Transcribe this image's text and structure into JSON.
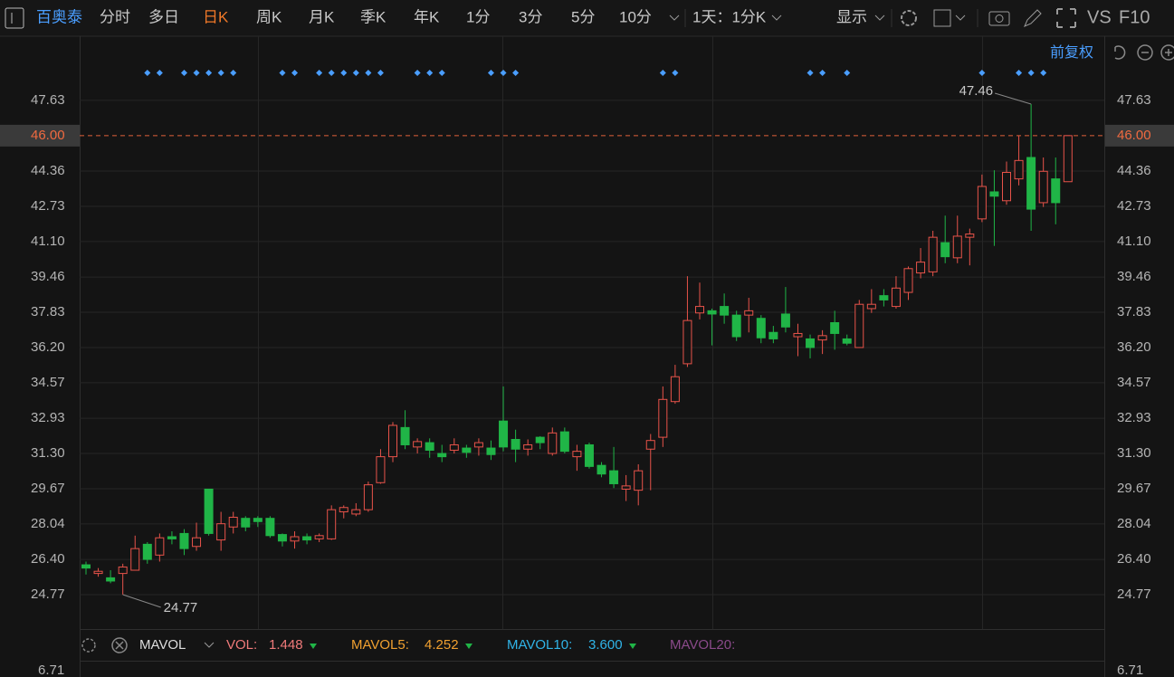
{
  "toolbar": {
    "stock": "百奥泰",
    "periods": [
      "分时",
      "多日",
      "日K",
      "周K",
      "月K",
      "季K",
      "年K",
      "1分",
      "3分",
      "5分",
      "10分"
    ],
    "interval": "1天：1分K",
    "display": "显示",
    "vs": "VS",
    "f10": "F10"
  },
  "adjust": "前复权",
  "indicator": {
    "name": "MAVOL",
    "vol_label": "VOL:",
    "vol": "1.448",
    "ma5_label": "MAVOL5:",
    "ma5": "4.252",
    "ma10_label": "MAVOL10:",
    "ma10": "3.600",
    "ma20_label": "MAVOL20:"
  },
  "volume_axis": {
    "yticks": [
      6.71
    ]
  },
  "chart_data": {
    "type": "candlestick",
    "up_color": "#e8534a",
    "down_color": "#20b547",
    "ylim": [
      23.18,
      50.39
    ],
    "yticks": [
      47.63,
      {
        "value": 46,
        "label": "46.00"
      },
      44.36,
      42.73,
      {
        "value": 41.1,
        "label": "41.10"
      },
      39.46,
      37.83,
      {
        "value": 36.2,
        "label": "36.20"
      },
      34.57,
      32.93,
      {
        "value": 31.3,
        "label": "31.30"
      },
      29.67,
      28.04,
      {
        "value": 26.4,
        "label": "26.40"
      },
      24.77
    ],
    "grid": true,
    "open": [
      26.15,
      25.75,
      25.55,
      25.75,
      25.9,
      27.1,
      26.6,
      27.45,
      27.6,
      27.0,
      29.65,
      27.3,
      27.9,
      28.3,
      28.3,
      28.3,
      27.55,
      27.25,
      27.45,
      27.35,
      27.35,
      28.6,
      28.5,
      28.7,
      29.95,
      31.15,
      32.5,
      31.6,
      31.8,
      31.3,
      31.45,
      31.55,
      31.6,
      31.55,
      32.8,
      31.95,
      31.5,
      32.05,
      31.3,
      32.3,
      31.15,
      31.7,
      30.75,
      30.5,
      29.65,
      29.6,
      31.5,
      32.05,
      33.7,
      35.45,
      37.8,
      37.9,
      38.1,
      37.7,
      37.7,
      37.55,
      36.9,
      37.75,
      36.7,
      36.6,
      36.55,
      37.35,
      36.6,
      36.2,
      38.0,
      38.6,
      38.1,
      38.75,
      39.65,
      39.7,
      41.05,
      40.35,
      41.3,
      42.15,
      43.4,
      42.99,
      44.0,
      44.99,
      42.9,
      44.0,
      43.87
    ],
    "high": [
      26.3,
      26.0,
      25.9,
      26.2,
      27.5,
      27.2,
      27.6,
      27.7,
      27.8,
      28.1,
      29.65,
      28.6,
      28.6,
      28.4,
      28.4,
      28.4,
      27.6,
      27.7,
      27.6,
      27.6,
      28.9,
      28.9,
      29.0,
      30.0,
      31.5,
      32.75,
      33.3,
      32.0,
      32.0,
      31.7,
      32.0,
      31.7,
      32.0,
      31.9,
      34.4,
      32.4,
      31.95,
      32.1,
      32.5,
      32.5,
      31.7,
      31.8,
      30.9,
      31.6,
      30.3,
      30.8,
      32.2,
      34.4,
      35.4,
      39.5,
      39.2,
      38.0,
      38.7,
      37.9,
      38.5,
      37.7,
      37.2,
      39.0,
      37.3,
      36.8,
      37.0,
      37.9,
      36.8,
      38.4,
      38.9,
      38.9,
      39.5,
      39.95,
      40.8,
      41.6,
      42.3,
      42.3,
      41.7,
      44.2,
      44.4,
      44.8,
      46.0,
      47.46,
      44.99,
      44.99,
      46.0
    ],
    "low": [
      25.7,
      25.6,
      25.3,
      24.77,
      25.9,
      26.2,
      26.3,
      27.1,
      26.6,
      26.8,
      27.5,
      26.8,
      27.6,
      27.7,
      27.9,
      27.4,
      27.0,
      26.9,
      27.1,
      27.2,
      27.3,
      28.3,
      28.4,
      28.6,
      29.9,
      30.9,
      31.5,
      31.3,
      31.1,
      30.9,
      31.3,
      31.1,
      31.2,
      31.0,
      31.4,
      30.9,
      31.2,
      31.5,
      31.2,
      31.3,
      30.5,
      30.6,
      30.2,
      29.7,
      29.1,
      28.9,
      29.6,
      31.6,
      33.6,
      35.3,
      37.5,
      36.3,
      37.3,
      36.5,
      36.9,
      36.4,
      36.4,
      36.9,
      35.8,
      35.7,
      35.9,
      36.1,
      36.3,
      36.2,
      37.8,
      38.1,
      38.0,
      38.4,
      39.4,
      39.5,
      40.1,
      40.1,
      40.0,
      42.0,
      40.9,
      42.8,
      43.7,
      41.6,
      42.7,
      41.9,
      43.87
    ],
    "close": [
      26.0,
      25.85,
      25.4,
      26.05,
      26.9,
      26.4,
      27.4,
      27.35,
      26.9,
      27.4,
      27.6,
      28.05,
      28.35,
      27.9,
      28.15,
      27.5,
      27.25,
      27.45,
      27.3,
      27.5,
      28.7,
      28.8,
      28.7,
      29.85,
      31.15,
      32.6,
      31.7,
      31.85,
      31.45,
      31.15,
      31.7,
      31.35,
      31.8,
      31.25,
      31.6,
      31.5,
      31.7,
      31.8,
      32.25,
      31.4,
      31.4,
      30.7,
      30.35,
      29.9,
      29.8,
      30.5,
      31.9,
      33.8,
      34.85,
      37.45,
      38.1,
      37.75,
      37.7,
      36.7,
      37.9,
      36.65,
      36.6,
      37.15,
      36.85,
      36.2,
      36.75,
      36.85,
      36.4,
      38.2,
      38.2,
      38.4,
      38.95,
      39.85,
      40.15,
      41.3,
      40.4,
      41.35,
      41.45,
      43.65,
      43.2,
      44.3,
      44.85,
      42.6,
      44.35,
      42.9,
      46.0
    ]
  }
}
